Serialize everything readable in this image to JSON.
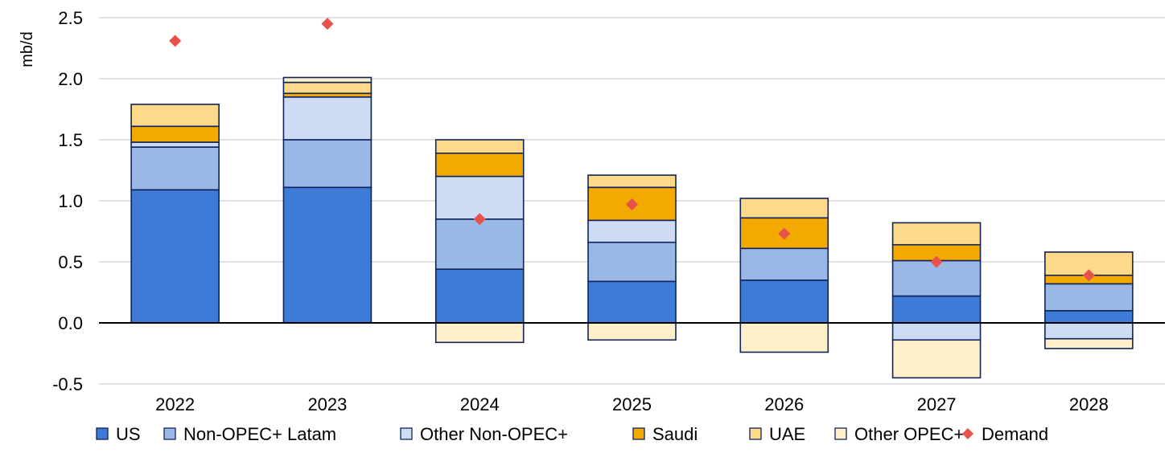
{
  "chart_data": {
    "type": "bar",
    "stacked": true,
    "ylabel": "mb/d",
    "ylim": [
      -0.5,
      2.5
    ],
    "yticks": [
      2.5,
      2.0,
      1.5,
      1.0,
      0.5,
      0.0,
      -0.5
    ],
    "ytick_labels": [
      "2.5",
      "2.0",
      "1.5",
      "1.0",
      "0.5",
      "0.0",
      "-0.5"
    ],
    "grid": true,
    "legend_position": "bottom",
    "categories": [
      "2022",
      "2023",
      "2024",
      "2025",
      "2026",
      "2027",
      "2028"
    ],
    "series": [
      {
        "name": "US",
        "kind": "bar",
        "color": "#3d7bd6",
        "values": [
          1.09,
          1.11,
          0.44,
          0.34,
          0.35,
          0.22,
          0.1
        ]
      },
      {
        "name": "Non-OPEC+ Latam",
        "kind": "bar",
        "color": "#9ab8e6",
        "values": [
          0.35,
          0.39,
          0.41,
          0.32,
          0.26,
          0.29,
          0.22
        ]
      },
      {
        "name": "Other Non-OPEC+",
        "kind": "bar",
        "color": "#cddcf4",
        "values": [
          0.04,
          0.35,
          0.35,
          0.18,
          0.0,
          -0.14,
          -0.13
        ]
      },
      {
        "name": "Saudi",
        "kind": "bar",
        "color": "#f2a900",
        "values": [
          0.13,
          0.03,
          0.19,
          0.27,
          0.25,
          0.13,
          0.07
        ]
      },
      {
        "name": "UAE",
        "kind": "bar",
        "color": "#fdd98a",
        "values": [
          0.18,
          0.09,
          0.11,
          0.1,
          0.16,
          0.18,
          0.19
        ]
      },
      {
        "name": "Other OPEC+",
        "kind": "bar",
        "color": "#fff0c9",
        "values": [
          0.0,
          0.04,
          -0.16,
          -0.14,
          -0.24,
          -0.31,
          -0.08
        ]
      },
      {
        "name": "Demand",
        "kind": "marker",
        "color": "#e8524a",
        "values": [
          2.31,
          2.45,
          0.85,
          0.97,
          0.73,
          0.5,
          0.39
        ]
      }
    ]
  }
}
